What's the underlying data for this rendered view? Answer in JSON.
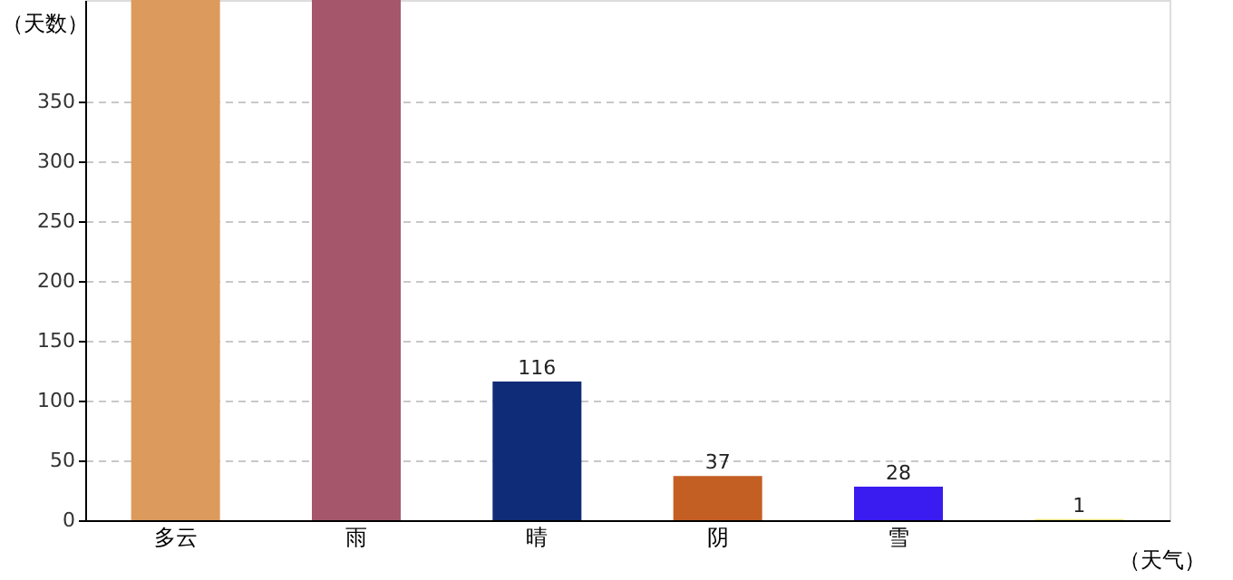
{
  "chart_data": {
    "type": "bar",
    "xlabel": "（天气）",
    "ylabel": "（天数）",
    "categories": [
      "多云",
      "雨",
      "晴",
      "阴",
      "雪",
      null
    ],
    "values": [
      435,
      435,
      116,
      37,
      28,
      1
    ],
    "colors": [
      "#dc9a5c",
      "#a6566b",
      "#0f2c78",
      "#c45f24",
      "#3a1bf0",
      "#e8e27a"
    ],
    "value_labels": [
      null,
      null,
      "116",
      "37",
      "28",
      "1"
    ],
    "ylim": [
      0,
      435
    ],
    "yticks": [
      0,
      50,
      100,
      150,
      200,
      250,
      300,
      350
    ],
    "grid": "y"
  }
}
